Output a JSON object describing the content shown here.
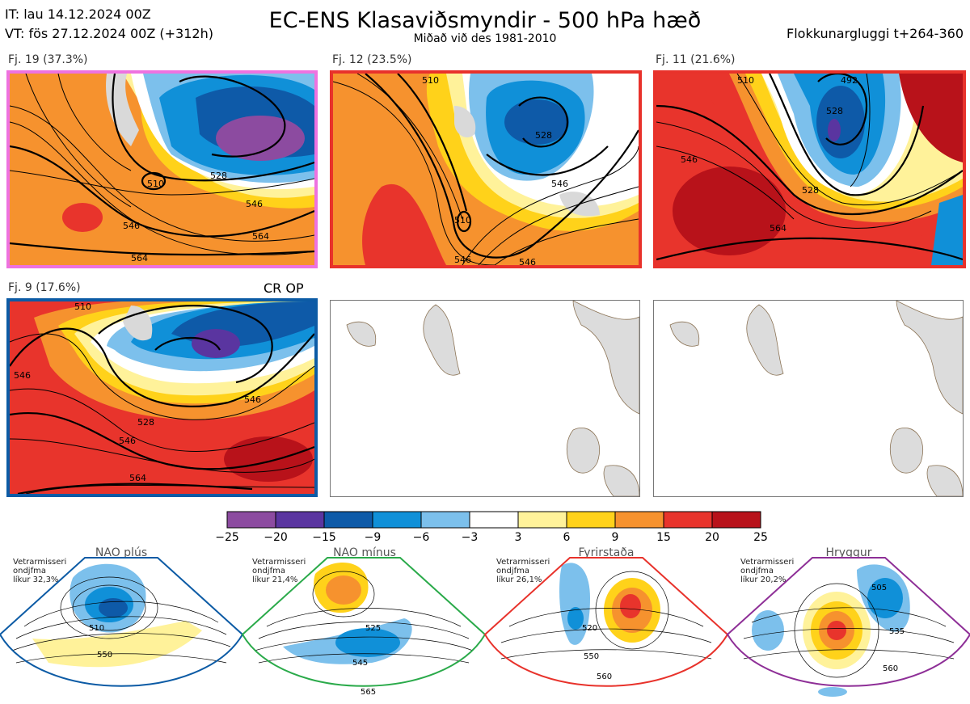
{
  "header": {
    "it": "IT: lau 14.12.2024 00Z",
    "vt": "VT: fös 27.12.2024 00Z  (+312h)",
    "title": "EC-ENS Klasaviðsmyndir - 500 hPa hæð",
    "subtitle": "Miðað við des 1981-2010",
    "window": "Flokkunargluggi t+264-360"
  },
  "panels": [
    {
      "label": "Fj. 19 (37.3%)",
      "border_color": "#ee72e0",
      "contours": [
        "510",
        "528",
        "546",
        "564",
        "546",
        "564"
      ]
    },
    {
      "label": "Fj. 12 (23.5%)",
      "border_color": "#e8322b",
      "contours": [
        "510",
        "510",
        "528",
        "546",
        "546",
        "546"
      ]
    },
    {
      "label": "Fj. 11 (21.6%)",
      "border_color": "#e8322b",
      "contours": [
        "510",
        "492",
        "528",
        "546",
        "564",
        "528"
      ]
    },
    {
      "label": "Fj. 9 (17.6%)",
      "border_color": "#0c5ba5",
      "contours": [
        "510",
        "528",
        "546",
        "564",
        "546",
        "546"
      ]
    }
  ],
  "cr_op": "CR OP",
  "colorbar": {
    "colors": [
      "#8c4ba0",
      "#5a35a0",
      "#0e5aa8",
      "#1090d8",
      "#7cc0ec",
      "#ffffff",
      "#fff29a",
      "#ffd21a",
      "#f6922e",
      "#e8342c",
      "#b8121a"
    ],
    "ticks": [
      "−25",
      "−20",
      "−15",
      "−9",
      "−6",
      "−3",
      "3",
      "6",
      "9",
      "15",
      "20",
      "25"
    ]
  },
  "regimes": [
    {
      "title": "NAO plús",
      "note": [
        "Vetrarmisseri",
        "ondjfma",
        "líkur 32,3%"
      ],
      "color": "#0c5ba5",
      "contours": [
        "510",
        "550"
      ]
    },
    {
      "title": "NAO mínus",
      "note": [
        "Vetrarmisseri",
        "ondjfma",
        "líkur 21,4%"
      ],
      "color": "#2aaa4a",
      "contours": [
        "525",
        "545",
        "565"
      ]
    },
    {
      "title": "Fyrirstaða",
      "note": [
        "Vetrarmisseri",
        "ondjfma",
        "líkur 26,1%"
      ],
      "color": "#e8322b",
      "contours": [
        "520",
        "550",
        "560"
      ]
    },
    {
      "title": "Hryggur",
      "note": [
        "Vetrarmisseri",
        "ondjfma",
        "líkur 20,2%"
      ],
      "color": "#ee72e0",
      "contours": [
        "505",
        "535",
        "560"
      ]
    }
  ]
}
